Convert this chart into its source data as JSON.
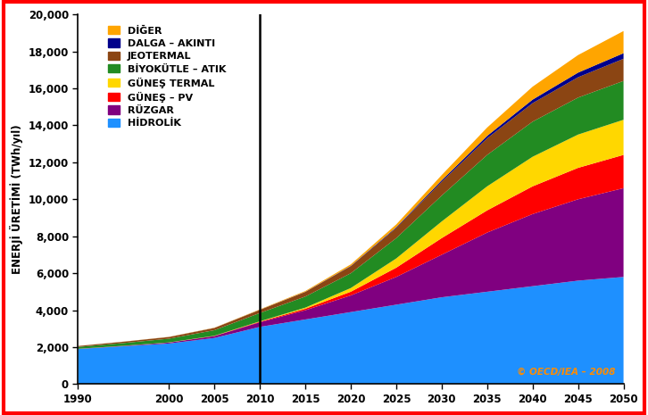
{
  "years": [
    1990,
    1995,
    2000,
    2005,
    2010,
    2015,
    2020,
    2025,
    2030,
    2035,
    2040,
    2045,
    2050
  ],
  "hidrolik": [
    1900,
    2050,
    2200,
    2500,
    3100,
    3500,
    3900,
    4300,
    4700,
    5000,
    5300,
    5600,
    5800
  ],
  "ruzgar": [
    10,
    20,
    50,
    100,
    250,
    500,
    900,
    1500,
    2300,
    3200,
    3900,
    4400,
    4800
  ],
  "gunes_pv": [
    2,
    3,
    5,
    10,
    30,
    80,
    200,
    500,
    900,
    1200,
    1500,
    1700,
    1800
  ],
  "gunes_termal": [
    2,
    3,
    5,
    10,
    20,
    60,
    200,
    500,
    900,
    1300,
    1600,
    1800,
    1900
  ],
  "biyokutle_atik": [
    100,
    150,
    200,
    300,
    450,
    600,
    800,
    1100,
    1400,
    1700,
    1900,
    2000,
    2100
  ],
  "jeotermal": [
    50,
    70,
    90,
    120,
    170,
    250,
    380,
    550,
    750,
    900,
    1000,
    1100,
    1200
  ],
  "dalga_akinti": [
    1,
    2,
    3,
    4,
    6,
    10,
    20,
    40,
    80,
    130,
    190,
    250,
    300
  ],
  "diger": [
    3,
    5,
    8,
    12,
    20,
    40,
    80,
    150,
    280,
    450,
    700,
    950,
    1200
  ],
  "colors": {
    "hidrolik": "#1E90FF",
    "ruzgar": "#800080",
    "gunes_pv": "#FF0000",
    "gunes_termal": "#FFD700",
    "biyokutle_atik": "#228B22",
    "jeotermal": "#8B4513",
    "dalga_akinti": "#00008B",
    "diger": "#FFA500"
  },
  "labels": {
    "diger": "DİĞER",
    "dalga_akinti": "DALGA – AKINTI",
    "jeotermal": "JEOTERMAL",
    "biyokutle_atik": "BİYOKÜTLE – ATIK",
    "gunes_termal": "GÜNEŞ TERMAL",
    "gunes_pv": "GÜNEŞ – PV",
    "ruzgar": "RÜZGAR",
    "hidrolik": "HİDROLİK"
  },
  "ylabel": "ENERJİ ÜRETİMİ (TWh/yıl)",
  "ylim": [
    0,
    20000
  ],
  "yticks": [
    0,
    2000,
    4000,
    6000,
    8000,
    10000,
    12000,
    14000,
    16000,
    18000,
    20000
  ],
  "xticks": [
    1990,
    2000,
    2005,
    2010,
    2015,
    2020,
    2025,
    2030,
    2035,
    2040,
    2045,
    2050
  ],
  "vline_x": 2010,
  "watermark": "© OECD/IEA – 2008",
  "watermark_color": "#FF8C00",
  "bg_color": "#FFFFFF",
  "border_color": "#FF0000"
}
